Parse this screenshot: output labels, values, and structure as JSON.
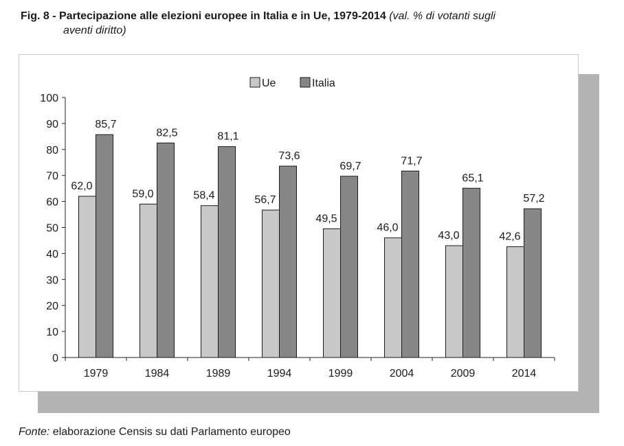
{
  "header": {
    "title": "Fig. 8 - Partecipazione alle elezioni europee in Italia e in Ue, 1979-2014",
    "note_line1": "(val. % di votanti sugli",
    "note_line2": "aventi diritto)"
  },
  "footer": {
    "source_label": "Fonte:",
    "source_text": " elaborazione Censis su dati Parlamento europeo"
  },
  "chart_data": {
    "type": "bar",
    "title": "Fig. 8 - Partecipazione alle elezioni europee in Italia e in Ue, 1979-2014",
    "subtitle": "(val. % di votanti sugli aventi diritto)",
    "categories": [
      "1979",
      "1984",
      "1989",
      "1994",
      "1999",
      "2004",
      "2009",
      "2014"
    ],
    "series": [
      {
        "name": "Ue",
        "values": [
          62.0,
          59.0,
          58.4,
          56.7,
          49.5,
          46.0,
          43.0,
          42.6
        ],
        "labels": [
          "62,0",
          "59,0",
          "58,4",
          "56,7",
          "49,5",
          "46,0",
          "43,0",
          "42,6"
        ],
        "color": "#c8c8c8"
      },
      {
        "name": "Italia",
        "values": [
          85.7,
          82.5,
          81.1,
          73.6,
          69.7,
          71.7,
          65.1,
          57.2
        ],
        "labels": [
          "85,7",
          "82,5",
          "81,1",
          "73,6",
          "69,7",
          "71,7",
          "65,1",
          "57,2"
        ],
        "color": "#878787"
      }
    ],
    "yticks": [
      "0",
      "10",
      "20",
      "30",
      "40",
      "50",
      "60",
      "70",
      "80",
      "90",
      "100"
    ],
    "ylim": [
      0,
      100
    ],
    "xlabel": "",
    "ylabel": "",
    "grid": false,
    "legend": "top-center"
  }
}
